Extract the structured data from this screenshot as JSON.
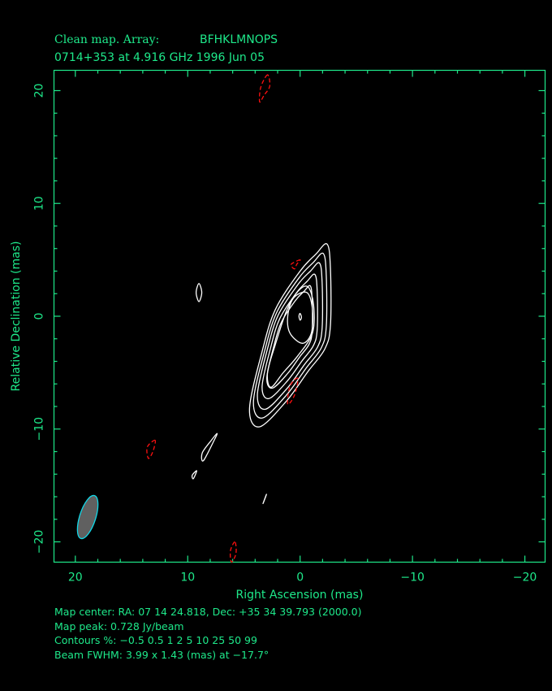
{
  "title": {
    "line1_prefix": "Clean map.  Array:",
    "line1_array": "BFHKLMNOPS",
    "line2": "0714+353 at 4.916 GHz 1996 Jun 05"
  },
  "footer": {
    "map_center": "Map center:  RA: 07 14 24.818,  Dec: +35 34 39.793 (2000.0)",
    "map_peak": "Map peak: 0.728 Jy/beam",
    "contours": "Contours %: −0.5 0.5 1 2 5 10 25 50 99",
    "beam": "Beam FWHM: 3.99 x 1.43 (mas) at −17.7°"
  },
  "colors": {
    "axis": "#1ee88a",
    "positive_contour": "#ffffff",
    "negative_contour": "#ff1010",
    "beam_fill": "#606060",
    "beam_edge": "#10d8e8"
  },
  "chart_data": {
    "type": "contour",
    "xlabel": "Right Ascension  (mas)",
    "ylabel": "Relative Declination  (mas)",
    "xlim": [
      21.9,
      -21.8
    ],
    "ylim": [
      -21.8,
      21.8
    ],
    "x_ticks": [
      {
        "v": 20,
        "label": "20"
      },
      {
        "v": 10,
        "label": "10"
      },
      {
        "v": 0,
        "label": "0"
      },
      {
        "v": -10,
        "label": "−10"
      },
      {
        "v": -20,
        "label": "−20"
      }
    ],
    "y_ticks": [
      {
        "v": 20,
        "label": "20"
      },
      {
        "v": 10,
        "label": "10"
      },
      {
        "v": 0,
        "label": "0"
      },
      {
        "v": -10,
        "label": "−10"
      },
      {
        "v": -20,
        "label": "−20"
      }
    ],
    "minor_tick_step": 2,
    "levels_percent": [
      -0.5,
      0.5,
      1,
      2,
      5,
      10,
      25,
      50,
      99
    ],
    "contours": [
      {
        "level": 0.5,
        "points": [
          [
            -2.4,
            6.4
          ],
          [
            -2.7,
            4.2
          ],
          [
            -2.7,
            -0.8
          ],
          [
            -2.2,
            -2.9
          ],
          [
            -0.7,
            -4.9
          ],
          [
            1.2,
            -7.5
          ],
          [
            3.6,
            -9.8
          ],
          [
            4.5,
            -8.2
          ],
          [
            3.4,
            -3.2
          ],
          [
            2.2,
            0.6
          ],
          [
            0,
            4
          ],
          [
            -1.4,
            5.5
          ]
        ]
      },
      {
        "level": 1,
        "points": [
          [
            -2.06,
            5.56
          ],
          [
            -2.33,
            3.58
          ],
          [
            -2.33,
            -0.92
          ],
          [
            -1.88,
            -2.81
          ],
          [
            -0.53,
            -4.61
          ],
          [
            1.18,
            -6.95
          ],
          [
            3.34,
            -9.02
          ],
          [
            4.15,
            -7.58
          ],
          [
            3.16,
            -3.08
          ],
          [
            2.08,
            0.34
          ],
          [
            0.1,
            3.4
          ],
          [
            -1.16,
            4.75
          ]
        ]
      },
      {
        "level": 2,
        "points": [
          [
            -1.72,
            4.72
          ],
          [
            -1.96,
            2.96
          ],
          [
            -1.96,
            -1.04
          ],
          [
            -1.56,
            -2.72
          ],
          [
            -0.36,
            -4.32
          ],
          [
            1.16,
            -6.4
          ],
          [
            3.08,
            -8.24
          ],
          [
            3.8,
            -6.96
          ],
          [
            2.92,
            -2.96
          ],
          [
            1.96,
            0.08
          ],
          [
            0.2,
            2.8
          ],
          [
            -0.92,
            4.0
          ]
        ]
      },
      {
        "level": 5,
        "points": [
          [
            -1.31,
            3.71
          ],
          [
            -1.52,
            2.22
          ],
          [
            -1.52,
            -1.18
          ],
          [
            -1.18,
            -2.61
          ],
          [
            -0.16,
            -3.97
          ],
          [
            1.14,
            -5.74
          ],
          [
            2.77,
            -7.3
          ],
          [
            3.38,
            -6.22
          ],
          [
            2.63,
            -2.82
          ],
          [
            1.82,
            -0.23
          ],
          [
            0.32,
            2.08
          ],
          [
            -0.63,
            3.1
          ]
        ]
      },
      {
        "level": 10,
        "points": [
          [
            -0.9,
            2.7
          ],
          [
            -1.07,
            1.47
          ],
          [
            -1.07,
            -1.33
          ],
          [
            -0.79,
            -2.5
          ],
          [
            0.05,
            -3.62
          ],
          [
            1.11,
            -5.08
          ],
          [
            2.46,
            -6.37
          ],
          [
            2.96,
            -5.47
          ],
          [
            2.34,
            -2.67
          ],
          [
            1.67,
            -0.54
          ],
          [
            0.44,
            1.36
          ],
          [
            -0.34,
            2.2
          ]
        ]
      },
      {
        "level": 25,
        "points": [
          [
            -0.7,
            2.6
          ],
          [
            -1.2,
            1
          ],
          [
            -1.1,
            -1.5
          ],
          [
            0.2,
            -3.5
          ],
          [
            1.5,
            -5
          ],
          [
            2.6,
            -6.3
          ],
          [
            2.9,
            -5
          ],
          [
            2.2,
            -2.5
          ],
          [
            1.2,
            0.5
          ],
          [
            0.2,
            2.2
          ]
        ]
      },
      {
        "level": 50,
        "points": [
          [
            -0.6,
            2.1
          ],
          [
            -1.1,
            0.6
          ],
          [
            -1.0,
            -1.5
          ],
          [
            -0.2,
            -2.4
          ],
          [
            0.9,
            -1.5
          ],
          [
            1.1,
            0
          ],
          [
            0.6,
            1.6
          ]
        ]
      },
      {
        "level": 99,
        "points": [
          [
            0,
            0.25
          ],
          [
            -0.12,
            -0.1
          ],
          [
            0,
            -0.35
          ],
          [
            0.1,
            0
          ]
        ]
      },
      {
        "level": 0.5,
        "points": [
          [
            9.0,
            2.9
          ],
          [
            8.75,
            2.1
          ],
          [
            9.0,
            1.3
          ],
          [
            9.25,
            2.1
          ]
        ]
      },
      {
        "level": 0.5,
        "points": [
          [
            7.4,
            -10.4
          ],
          [
            7.6,
            -10.9
          ],
          [
            8.6,
            -12.8
          ],
          [
            8.7,
            -12.1
          ],
          [
            7.9,
            -11.0
          ]
        ]
      },
      {
        "level": 0.5,
        "points": [
          [
            9.2,
            -13.7
          ],
          [
            9.5,
            -14.4
          ],
          [
            9.6,
            -14.1
          ]
        ]
      },
      {
        "level": 0.5,
        "points": [
          [
            3.0,
            -15.8
          ],
          [
            3.3,
            -16.6
          ],
          [
            3.1,
            -16.1
          ]
        ]
      },
      {
        "level": -0.5,
        "points": [
          [
            2.9,
            21.4
          ],
          [
            3.5,
            20.3
          ],
          [
            3.6,
            19.0
          ],
          [
            3.2,
            19.6
          ],
          [
            2.7,
            20.4
          ]
        ]
      },
      {
        "level": -0.5,
        "points": [
          [
            0.0,
            5.0
          ],
          [
            0.8,
            4.6
          ],
          [
            0.5,
            4.2
          ],
          [
            0.3,
            4.6
          ]
        ]
      },
      {
        "level": -0.5,
        "points": [
          [
            0.2,
            -5.5
          ],
          [
            0.9,
            -6.2
          ],
          [
            1.1,
            -7.8
          ],
          [
            0.5,
            -7.0
          ]
        ]
      },
      {
        "level": -0.5,
        "points": [
          [
            12.9,
            -11.0
          ],
          [
            13.6,
            -11.6
          ],
          [
            13.5,
            -12.6
          ],
          [
            13.1,
            -12.0
          ]
        ]
      },
      {
        "level": -0.5,
        "points": [
          [
            5.8,
            -20.0
          ],
          [
            6.2,
            -20.8
          ],
          [
            6.1,
            -21.8
          ],
          [
            5.7,
            -21.0
          ]
        ]
      }
    ],
    "beam": {
      "ra": 18.9,
      "dec": -17.8,
      "major_mas": 3.99,
      "minor_mas": 1.43,
      "pa_deg": -17.7
    }
  }
}
